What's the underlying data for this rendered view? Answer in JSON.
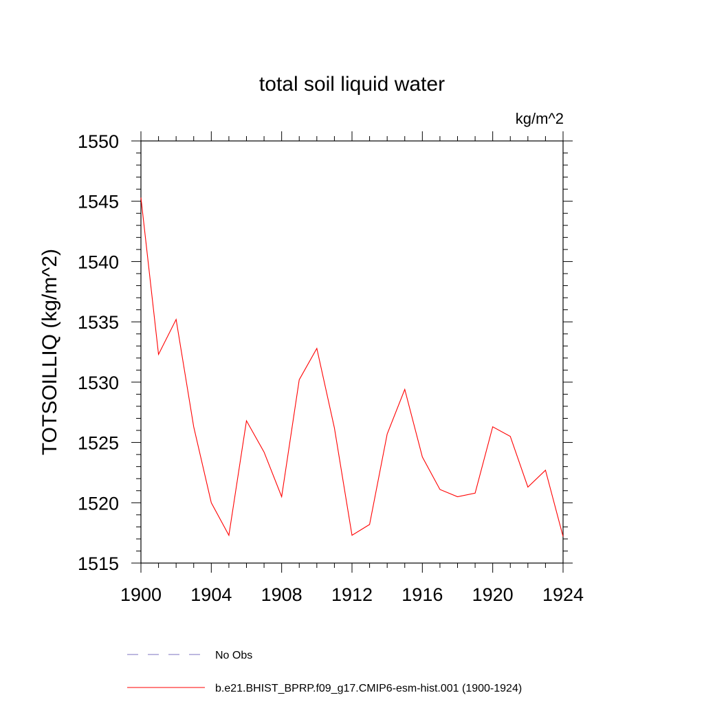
{
  "chart_data": {
    "type": "line",
    "title": "total soil liquid water",
    "units_label": "kg/m^2",
    "ylabel": "TOTSOILLIQ  (kg/m^2)",
    "xlabel": "",
    "xlim": [
      1900,
      1924
    ],
    "ylim": [
      1515,
      1550
    ],
    "x_ticks": [
      1900,
      1904,
      1908,
      1912,
      1916,
      1920,
      1924
    ],
    "x_tick_labels": [
      "1900",
      "1904",
      "1908",
      "1912",
      "1916",
      "1920",
      "1924"
    ],
    "y_ticks": [
      1515,
      1520,
      1525,
      1530,
      1535,
      1540,
      1545,
      1550
    ],
    "y_tick_labels": [
      "1515",
      "1520",
      "1525",
      "1530",
      "1535",
      "1540",
      "1545",
      "1550"
    ],
    "x_minor_step": 1,
    "y_minor_step": 1,
    "series": [
      {
        "name": "b.e21.BHIST_BPRP.f09_g17.CMIP6-esm-hist.001 (1900-1924)",
        "color": "#ff0000",
        "style": "solid",
        "x": [
          1900,
          1901,
          1902,
          1903,
          1904,
          1905,
          1906,
          1907,
          1908,
          1909,
          1910,
          1911,
          1912,
          1913,
          1914,
          1915,
          1916,
          1917,
          1918,
          1919,
          1920,
          1921,
          1922,
          1923,
          1924
        ],
        "values": [
          1545.3,
          1532.3,
          1535.2,
          1526.3,
          1520.0,
          1517.3,
          1526.8,
          1524.2,
          1520.5,
          1530.2,
          1532.8,
          1526.2,
          1517.3,
          1518.2,
          1525.7,
          1529.4,
          1523.8,
          1521.1,
          1520.5,
          1520.8,
          1526.3,
          1525.5,
          1521.3,
          1522.7,
          1517.2
        ]
      }
    ],
    "legend": [
      {
        "label": "No Obs",
        "color": "#7b72c2",
        "style": "dashed"
      },
      {
        "label": "b.e21.BHIST_BPRP.f09_g17.CMIP6-esm-hist.001 (1900-1924)",
        "color": "#ff0000",
        "style": "solid"
      }
    ],
    "legend_position": "bottom",
    "grid": false
  }
}
